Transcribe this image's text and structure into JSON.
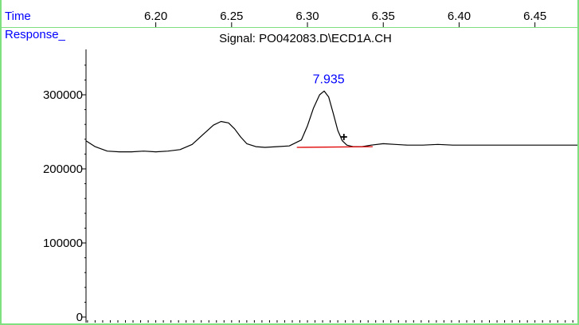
{
  "header": {
    "time_label": "Time",
    "response_label": "Response_"
  },
  "chart_data": {
    "type": "line",
    "title": "Signal: PO042083.D\\ECD1A.CH",
    "xlabel": "Time",
    "ylabel": "Response_",
    "xlim": [
      6.154,
      6.478
    ],
    "ylim": [
      0,
      360000
    ],
    "x_ticks": [
      "6.20",
      "6.25",
      "6.30",
      "6.35",
      "6.40",
      "6.45"
    ],
    "x_tick_values": [
      6.2,
      6.25,
      6.3,
      6.35,
      6.4,
      6.45
    ],
    "y_ticks": [
      "0",
      "100000",
      "200000",
      "300000"
    ],
    "y_tick_values": [
      0,
      100000,
      200000,
      300000
    ],
    "series": [
      {
        "x": [
          6.154,
          6.16,
          6.168,
          6.176,
          6.184,
          6.192,
          6.2,
          6.208,
          6.216,
          6.224,
          6.232,
          6.238,
          6.243,
          6.248,
          6.252,
          6.256,
          6.26,
          6.266,
          6.272,
          6.28,
          6.288,
          6.296,
          6.3,
          6.304,
          6.308,
          6.311,
          6.314,
          6.317,
          6.32,
          6.323,
          6.326,
          6.33,
          6.336,
          6.342,
          6.35,
          6.358,
          6.366,
          6.376,
          6.386,
          6.396,
          6.41,
          6.43,
          6.45,
          6.478
        ],
        "y": [
          238000,
          230000,
          224000,
          223000,
          223000,
          224000,
          223000,
          224000,
          226000,
          233000,
          248000,
          259000,
          264000,
          262000,
          254000,
          243000,
          234000,
          230000,
          229000,
          230000,
          231000,
          239000,
          258000,
          282000,
          300000,
          305000,
          297000,
          275000,
          252000,
          238000,
          232000,
          230000,
          230000,
          232000,
          234000,
          233000,
          232000,
          232000,
          233000,
          232000,
          232000,
          232000,
          232000,
          232000
        ]
      }
    ],
    "baseline": {
      "x": [
        6.293,
        6.343
      ],
      "y": [
        229000,
        230000
      ]
    },
    "peak_label": {
      "text": "7.935",
      "x": 6.314,
      "y": 305000
    },
    "marker": {
      "symbol": "+",
      "x": 6.324,
      "y": 243000
    },
    "colors": {
      "trace": "#000000",
      "baseline": "#e00000",
      "labels": "#0000ff",
      "frame": "#7fe07f"
    },
    "grid": false
  }
}
